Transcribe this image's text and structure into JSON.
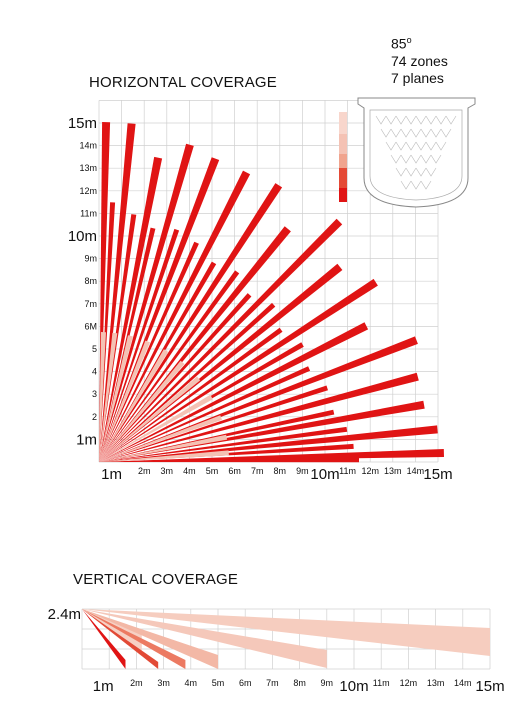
{
  "spec": {
    "angle": "85",
    "degree_symbol": "o",
    "zones": "74 zones",
    "planes": "7 planes"
  },
  "horizontal": {
    "title": "HORIZONTAL COVERAGE",
    "x_labels": [
      "1m",
      "2m",
      "3m",
      "4m",
      "5m",
      "6m",
      "7m",
      "8m",
      "9m",
      "10m",
      "11m",
      "12m",
      "13m",
      "14m",
      "15m"
    ],
    "y_labels": [
      "1m",
      "2",
      "3",
      "4",
      "5",
      "6M",
      "7m",
      "8m",
      "9m",
      "10m",
      "11m",
      "12m",
      "13m",
      "14m",
      "15m"
    ],
    "colors": {
      "strong": "#e01414",
      "light": "#f4c2b4",
      "grid": "#d0d0d0"
    }
  },
  "vertical": {
    "title": "VERTICAL COVERAGE",
    "height_label": "2.4m",
    "x_labels": [
      "1m",
      "2m",
      "3m",
      "4m",
      "5m",
      "6m",
      "7m",
      "8m",
      "9m",
      "10m",
      "11m",
      "12m",
      "13m",
      "14m",
      "15m"
    ]
  }
}
